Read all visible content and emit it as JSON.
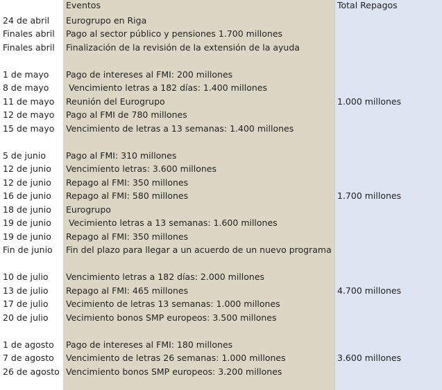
{
  "header": {
    "date": "",
    "event": "Eventos",
    "total": "Total Repagos"
  },
  "rows": [
    {
      "date": "24 de abril",
      "event": "Eurogrupo en Riga",
      "total": ""
    },
    {
      "date": "Finales abril",
      "event": "Pago al sector público y pensiones 1.700 millones",
      "total": ""
    },
    {
      "date": "Finales abril",
      "event": "Finalización de la revisión de la extensión de la ayuda",
      "total": ""
    },
    {
      "date": "",
      "event": "",
      "total": ""
    },
    {
      "date": "1 de mayo",
      "event": "Pago de intereses al FMI: 200 millones",
      "total": ""
    },
    {
      "date": "8 de mayo",
      "event": " Vencimiento letras a 182 días: 1.400 millones",
      "total": ""
    },
    {
      "date": "11 de mayo",
      "event": "Reunión del Eurogrupo",
      "total": "1.000 millones"
    },
    {
      "date": "12 de mayo",
      "event": "Pago al FMI de 780 millones",
      "total": ""
    },
    {
      "date": "15 de mayo",
      "event": "Vencimiento de letras a 13 semanas: 1.400 millones",
      "total": ""
    },
    {
      "date": "",
      "event": "",
      "total": ""
    },
    {
      "date": "5 de junio",
      "event": "Pago al FMI: 310 millones",
      "total": ""
    },
    {
      "date": "12 de junio",
      "event": "Vencimiento letras: 3.600 millones",
      "total": ""
    },
    {
      "date": "12 de junio",
      "event": "Repago al FMI: 350 millones",
      "total": ""
    },
    {
      "date": "16 de junio",
      "event": "Repago al FMI: 580 millones",
      "total": "1.700 millones"
    },
    {
      "date": "18 de junio",
      "event": "Eurogrupo",
      "total": ""
    },
    {
      "date": "19 de junio",
      "event": " Vecimiento letras a 13 semanas: 1.600 millones",
      "total": ""
    },
    {
      "date": "19 de junio",
      "event": "Repago al FMI: 350 millones",
      "total": ""
    },
    {
      "date": "Fin de junio",
      "event": "Fin del plazo para llegar a un acuerdo de un nuevo programa",
      "total": ""
    },
    {
      "date": "",
      "event": "",
      "total": ""
    },
    {
      "date": "10 de julio",
      "event": "Vencimiento letras a 182 días: 2.000 millones",
      "total": ""
    },
    {
      "date": "13 de julio",
      "event": "Repago al FMI: 465 millones",
      "total": "4.700 millones"
    },
    {
      "date": "17 de julio",
      "event": "Vecimiento de letras 13 semanas: 1.000 millones",
      "total": ""
    },
    {
      "date": "20 de julio",
      "event": "Vecimiento bonos SMP europeos: 3.500 millones",
      "total": ""
    },
    {
      "date": "",
      "event": "",
      "total": ""
    },
    {
      "date": "1 de agosto",
      "event": "Pago de intereses al FMI: 180 millones",
      "total": ""
    },
    {
      "date": "7 de agosto",
      "event": "Vencimiento de letras 26 semanas: 1.000 millones",
      "total": "3.600 millones"
    },
    {
      "date": "26 de agosto",
      "event": "Vencimiento bonos SMP europeos: 3.200 millones",
      "total": ""
    }
  ],
  "colors": {
    "event_column": "#dcd7c4",
    "total_column": "#dce5f1"
  }
}
